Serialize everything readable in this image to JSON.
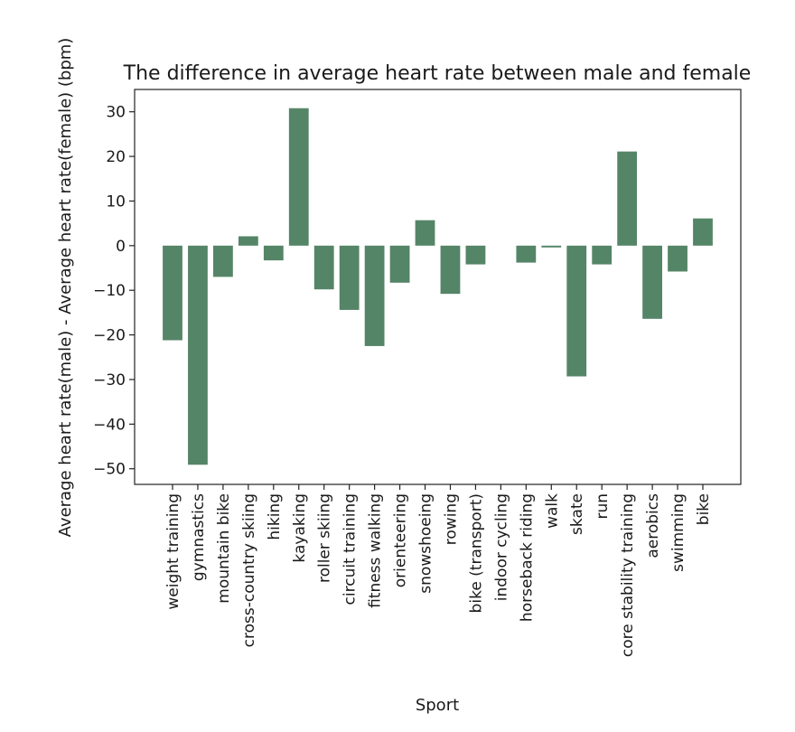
{
  "chart_data": {
    "type": "bar",
    "title": "The difference in average heart rate between male and female",
    "xlabel": "Sport",
    "ylabel": "Average heart rate(male) - Average heart rate(female) (bpm)",
    "ylim": [
      -53.5,
      35
    ],
    "yticks": [
      30,
      20,
      10,
      0,
      -10,
      -20,
      -30,
      -40,
      -50
    ],
    "ytick_labels": [
      "30",
      "20",
      "10",
      "0",
      "−10",
      "−20",
      "−30",
      "−40",
      "−50"
    ],
    "grid": false,
    "bar_color": "#558567",
    "categories": [
      "weight training",
      "gymnastics",
      "mountain bike",
      "cross-country skiing",
      "hiking",
      "kayaking",
      "roller skiing",
      "circuit training",
      "fitness walking",
      "orienteering",
      "snowshoeing",
      "rowing",
      "bike (transport)",
      "indoor cycling",
      "horseback riding",
      "walk",
      "skate",
      "run",
      "core stability training",
      "aerobics",
      "swimming",
      "bike"
    ],
    "values": [
      -21.2,
      -49.1,
      -7.0,
      2.1,
      -3.3,
      30.8,
      -9.8,
      -14.4,
      -22.5,
      -8.3,
      5.7,
      -10.8,
      -4.2,
      0.0,
      -3.8,
      -0.4,
      -29.3,
      -4.2,
      21.1,
      -16.4,
      -5.8,
      6.1
    ]
  }
}
